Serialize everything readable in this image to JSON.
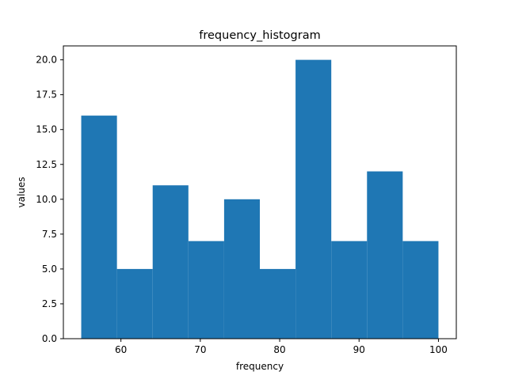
{
  "colors": {
    "bar_fill": "#1f77b4",
    "axes": "#000000",
    "background": "#ffffff"
  },
  "chart_data": {
    "type": "bar",
    "title": "frequency_histogram",
    "xlabel": "frequency",
    "ylabel": "values",
    "bin_edges": [
      55,
      59.5,
      64,
      68.5,
      73,
      77.5,
      82,
      86.5,
      91,
      95.5,
      100
    ],
    "values": [
      16,
      5,
      11,
      7,
      10,
      5,
      20,
      7,
      12,
      7
    ],
    "xlim": [
      52.75,
      102.25
    ],
    "ylim": [
      0,
      21
    ],
    "xticks": [
      60,
      70,
      80,
      90,
      100
    ],
    "xtick_labels": [
      "60",
      "70",
      "80",
      "90",
      "100"
    ],
    "yticks": [
      0,
      2.5,
      5,
      7.5,
      10,
      12.5,
      15,
      17.5,
      20
    ],
    "ytick_labels": [
      "0.0",
      "2.5",
      "5.0",
      "7.5",
      "10.0",
      "12.5",
      "15.0",
      "17.5",
      "20.0"
    ],
    "grid": false,
    "legend": "none"
  }
}
